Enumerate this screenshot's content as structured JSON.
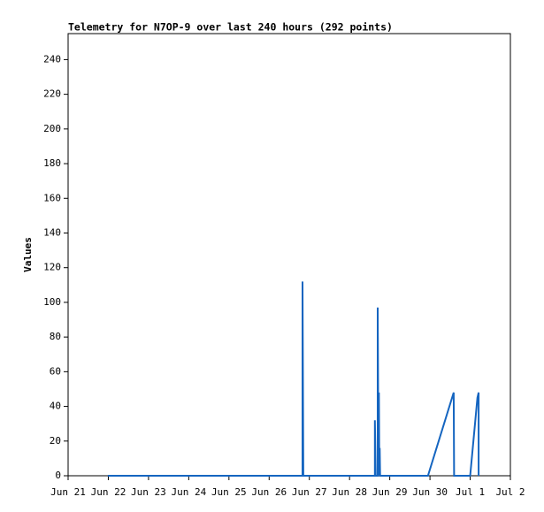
{
  "chart_data": {
    "type": "line",
    "title": "Telemetry for N7OP-9 over last 240 hours (292 points)",
    "y_label": "Values",
    "x": [
      21.99,
      26.83,
      26.83,
      26.85,
      28.63,
      28.63,
      28.65,
      28.7,
      28.7,
      28.72,
      28.73,
      28.74,
      28.75,
      28.76,
      29.95,
      30.59,
      30.6,
      31.0,
      31.18,
      31.21,
      31.21
    ],
    "series": [
      {
        "color": "#1565c0",
        "values": [
          0,
          0,
          112,
          0,
          0,
          32,
          0,
          0,
          97,
          0,
          48,
          0,
          16,
          0,
          0,
          48,
          0,
          0,
          45,
          48,
          0
        ]
      }
    ],
    "xlim": [
      21,
      32
    ],
    "xticks": [
      {
        "value": 21,
        "label": "Jun 21"
      },
      {
        "value": 22,
        "label": "Jun 22"
      },
      {
        "value": 23,
        "label": "Jun 23"
      },
      {
        "value": 24,
        "label": "Jun 24"
      },
      {
        "value": 25,
        "label": "Jun 25"
      },
      {
        "value": 26,
        "label": "Jun 26"
      },
      {
        "value": 27,
        "label": "Jun 27"
      },
      {
        "value": 28,
        "label": "Jun 28"
      },
      {
        "value": 29,
        "label": "Jun 29"
      },
      {
        "value": 30,
        "label": "Jun 30"
      },
      {
        "value": 31,
        "label": "Jul 1"
      },
      {
        "value": 32,
        "label": "Jul 2"
      }
    ],
    "ylim": [
      0,
      255
    ],
    "yticks": [
      0,
      20,
      40,
      60,
      80,
      100,
      120,
      140,
      160,
      180,
      200,
      220,
      240
    ]
  }
}
